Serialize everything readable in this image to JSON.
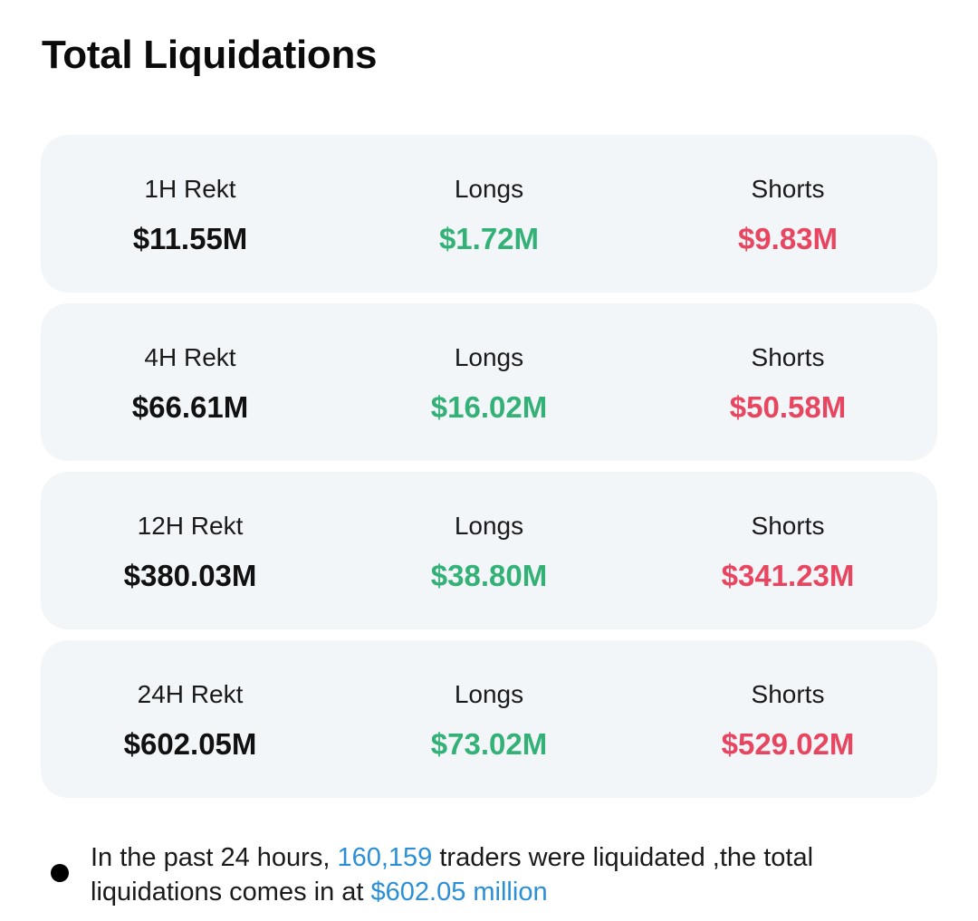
{
  "title": "Total Liquidations",
  "cards": [
    {
      "label": "1H Rekt",
      "total": "$11.55M",
      "longs_label": "Longs",
      "longs": "$1.72M",
      "shorts_label": "Shorts",
      "shorts": "$9.83M"
    },
    {
      "label": "4H Rekt",
      "total": "$66.61M",
      "longs_label": "Longs",
      "longs": "$16.02M",
      "shorts_label": "Shorts",
      "shorts": "$50.58M"
    },
    {
      "label": "12H Rekt",
      "total": "$380.03M",
      "longs_label": "Longs",
      "longs": "$38.80M",
      "shorts_label": "Shorts",
      "shorts": "$341.23M"
    },
    {
      "label": "24H Rekt",
      "total": "$602.05M",
      "longs_label": "Longs",
      "longs": "$73.02M",
      "shorts_label": "Shorts",
      "shorts": "$529.02M"
    }
  ],
  "summary": {
    "prefix": "In the past 24 hours, ",
    "traders_count": "160,159",
    "middle": " traders were liquidated ,the total liquidations comes in at ",
    "amount": "$602.05 million"
  },
  "colors": {
    "longs": "#33b176",
    "shorts": "#e84660",
    "highlight": "#2a8fd6",
    "card_bg": "#f3f6f9"
  }
}
